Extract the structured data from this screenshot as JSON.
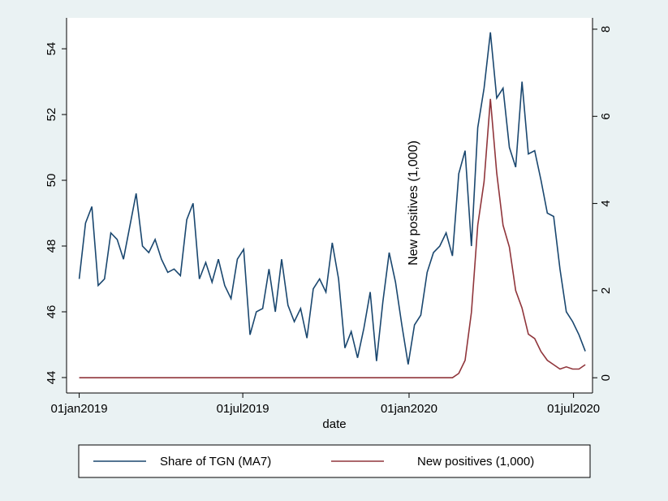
{
  "chart_data": {
    "type": "line",
    "x_label": "date",
    "y2_label": "New positives (1,000)",
    "x": [
      "2019-01-01",
      "2019-01-08",
      "2019-01-15",
      "2019-01-22",
      "2019-01-29",
      "2019-02-05",
      "2019-02-12",
      "2019-02-19",
      "2019-02-26",
      "2019-03-05",
      "2019-03-12",
      "2019-03-19",
      "2019-03-26",
      "2019-04-02",
      "2019-04-09",
      "2019-04-16",
      "2019-04-23",
      "2019-04-30",
      "2019-05-07",
      "2019-05-14",
      "2019-05-21",
      "2019-05-28",
      "2019-06-04",
      "2019-06-11",
      "2019-06-18",
      "2019-06-25",
      "2019-07-02",
      "2019-07-09",
      "2019-07-16",
      "2019-07-23",
      "2019-07-30",
      "2019-08-06",
      "2019-08-13",
      "2019-08-20",
      "2019-08-27",
      "2019-09-03",
      "2019-09-10",
      "2019-09-17",
      "2019-09-24",
      "2019-10-01",
      "2019-10-08",
      "2019-10-15",
      "2019-10-22",
      "2019-10-29",
      "2019-11-05",
      "2019-11-12",
      "2019-11-19",
      "2019-11-26",
      "2019-12-03",
      "2019-12-10",
      "2019-12-17",
      "2019-12-24",
      "2019-12-31",
      "2020-01-07",
      "2020-01-14",
      "2020-01-21",
      "2020-01-28",
      "2020-02-04",
      "2020-02-11",
      "2020-02-18",
      "2020-02-25",
      "2020-03-03",
      "2020-03-10",
      "2020-03-17",
      "2020-03-24",
      "2020-03-31",
      "2020-04-07",
      "2020-04-14",
      "2020-04-21",
      "2020-04-28",
      "2020-05-05",
      "2020-05-12",
      "2020-05-19",
      "2020-05-26",
      "2020-06-02",
      "2020-06-09",
      "2020-06-16",
      "2020-06-23",
      "2020-06-30",
      "2020-07-07",
      "2020-07-14"
    ],
    "series": [
      {
        "name": "Share of TGN (MA7)",
        "color": "#1a476f",
        "axis": "y",
        "values": [
          47.0,
          48.7,
          49.2,
          46.8,
          47.0,
          48.4,
          48.2,
          47.6,
          48.6,
          49.6,
          48.0,
          47.8,
          48.2,
          47.6,
          47.2,
          47.3,
          47.1,
          48.8,
          49.3,
          47.0,
          47.5,
          46.9,
          47.6,
          46.8,
          46.4,
          47.6,
          47.9,
          45.3,
          46.0,
          46.1,
          47.3,
          46.0,
          47.6,
          46.2,
          45.7,
          46.1,
          45.2,
          46.7,
          47.0,
          46.6,
          48.1,
          47.0,
          44.9,
          45.4,
          44.6,
          45.5,
          46.6,
          44.5,
          46.3,
          47.8,
          46.9,
          45.6,
          44.4,
          45.6,
          45.9,
          47.2,
          47.8,
          48.0,
          48.4,
          47.7,
          50.2,
          50.9,
          48.0,
          51.6,
          52.8,
          54.5,
          52.5,
          52.8,
          51.0,
          50.4,
          53.0,
          50.8,
          50.9,
          50.0,
          49.0,
          48.9,
          47.3,
          46.0,
          45.7,
          45.3,
          44.8
        ]
      },
      {
        "name": "New positives (1,000)",
        "color": "#90353b",
        "axis": "y2",
        "values": [
          0,
          0,
          0,
          0,
          0,
          0,
          0,
          0,
          0,
          0,
          0,
          0,
          0,
          0,
          0,
          0,
          0,
          0,
          0,
          0,
          0,
          0,
          0,
          0,
          0,
          0,
          0,
          0,
          0,
          0,
          0,
          0,
          0,
          0,
          0,
          0,
          0,
          0,
          0,
          0,
          0,
          0,
          0,
          0,
          0,
          0,
          0,
          0,
          0,
          0,
          0,
          0,
          0,
          0,
          0,
          0,
          0,
          0,
          0,
          0,
          0.1,
          0.4,
          1.5,
          3.5,
          4.5,
          6.4,
          4.7,
          3.5,
          3.0,
          2.0,
          1.6,
          1.0,
          0.9,
          0.6,
          0.4,
          0.3,
          0.2,
          0.25,
          0.2,
          0.2,
          0.3
        ]
      }
    ],
    "xlim": [
      "2018-12-18",
      "2020-07-22"
    ],
    "xticks": [
      {
        "value": "2019-01-01",
        "label": "01jan2019"
      },
      {
        "value": "2019-07-01",
        "label": "01jul2019"
      },
      {
        "value": "2020-01-01",
        "label": "01jan2020"
      },
      {
        "value": "2020-07-01",
        "label": "01jul2020"
      }
    ],
    "ylim": [
      43.53,
      54.94
    ],
    "yticks": [
      44,
      46,
      48,
      50,
      52,
      54
    ],
    "y2lim": [
      -0.35,
      8.26
    ],
    "y2ticks": [
      0,
      2,
      4,
      6,
      8
    ],
    "legend": "bottom"
  }
}
